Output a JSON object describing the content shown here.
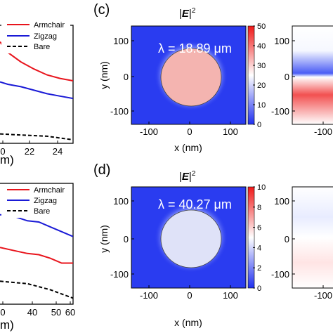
{
  "chart_data": [
    {
      "type": "line",
      "panel": "",
      "xlabel": "m)",
      "xticks": [
        "0",
        "22",
        "24"
      ],
      "xlim": [
        19.4,
        25
      ],
      "ylim": [
        0,
        1
      ],
      "legend_position": "top-right",
      "series": [
        {
          "name": "Armchair",
          "color": "#e8141c",
          "style": "solid",
          "x": [
            19.4,
            20,
            21,
            22,
            23,
            24,
            25
          ],
          "y": [
            0.86,
            0.77,
            0.69,
            0.63,
            0.58,
            0.55,
            0.53
          ]
        },
        {
          "name": "Zigzag",
          "color": "#1a1ad6",
          "style": "solid",
          "x": [
            19.4,
            20,
            21,
            22,
            23,
            24,
            25
          ],
          "y": [
            0.52,
            0.5,
            0.48,
            0.45,
            0.42,
            0.4,
            0.38
          ]
        },
        {
          "name": "Bare",
          "color": "#000000",
          "style": "dashed",
          "x": [
            19.4,
            21,
            23,
            25
          ],
          "y": [
            0.08,
            0.07,
            0.06,
            0.03
          ]
        }
      ]
    },
    {
      "type": "line",
      "panel": "",
      "xlabel": "m)",
      "xticks": [
        "0",
        "40",
        "50",
        "60"
      ],
      "xlim": [
        28,
        60
      ],
      "ylim": [
        0,
        1
      ],
      "legend_position": "top-right",
      "series": [
        {
          "name": "Armchair",
          "color": "#e8141c",
          "style": "solid",
          "x": [
            28,
            35,
            40,
            45,
            50,
            55,
            60
          ],
          "y": [
            0.47,
            0.44,
            0.42,
            0.41,
            0.38,
            0.34,
            0.34
          ]
        },
        {
          "name": "Zigzag",
          "color": "#1a1ad6",
          "style": "solid",
          "x": [
            28,
            32,
            40,
            45,
            50,
            55,
            60
          ],
          "y": [
            0.74,
            0.74,
            0.69,
            0.68,
            0.64,
            0.6,
            0.56
          ]
        },
        {
          "name": "Bare",
          "color": "#000000",
          "style": "dashed",
          "x": [
            28,
            40,
            50,
            60
          ],
          "y": [
            0.19,
            0.17,
            0.12,
            0.05
          ]
        }
      ]
    },
    {
      "type": "heatmap",
      "panel": "(c)",
      "title_quantity": "E",
      "title_exponent": "2",
      "annotation": "λ = 18.89 μm",
      "xlabel": "x (nm)",
      "ylabel": "y (nm)",
      "xticks": [
        "-100",
        "0",
        "100"
      ],
      "yticks": [
        "100",
        "0",
        "-100"
      ],
      "xlim": [
        -140,
        140
      ],
      "ylim": [
        -140,
        140
      ],
      "disk_radius": 80,
      "colorbar": {
        "ticks": [
          "50",
          "40",
          "30",
          "20",
          "10",
          "0"
        ],
        "range": [
          0,
          50
        ]
      },
      "background_value": 1,
      "disk_value": 29
    },
    {
      "type": "heatmap",
      "panel": "(d)",
      "title_quantity": "E",
      "title_exponent": "2",
      "annotation": "λ = 40.27 μm",
      "xlabel": "x (nm)",
      "ylabel": "y (nm)",
      "xticks": [
        "-100",
        "0",
        "100"
      ],
      "yticks": [
        "100",
        "0",
        "-100"
      ],
      "xlim": [
        -140,
        140
      ],
      "ylim": [
        -140,
        140
      ],
      "disk_radius": 80,
      "colorbar": {
        "ticks": [
          "10",
          "8",
          "6",
          "4",
          "2",
          "0"
        ],
        "range": [
          0,
          10
        ]
      },
      "background_value": 0.4,
      "disk_value": 4.6
    },
    {
      "type": "heatmap",
      "panel": "",
      "yticks": [
        "100",
        "0",
        "-100"
      ],
      "xticks": [
        "-100"
      ]
    },
    {
      "type": "heatmap",
      "panel": "",
      "yticks": [
        "100",
        "0",
        "-100"
      ],
      "xticks": [
        "-100"
      ]
    }
  ],
  "colors": {
    "red": "#e8141c",
    "blue": "#1a1ad6",
    "map_blue": "#2a3cf0",
    "map_red": "#ff2020"
  }
}
